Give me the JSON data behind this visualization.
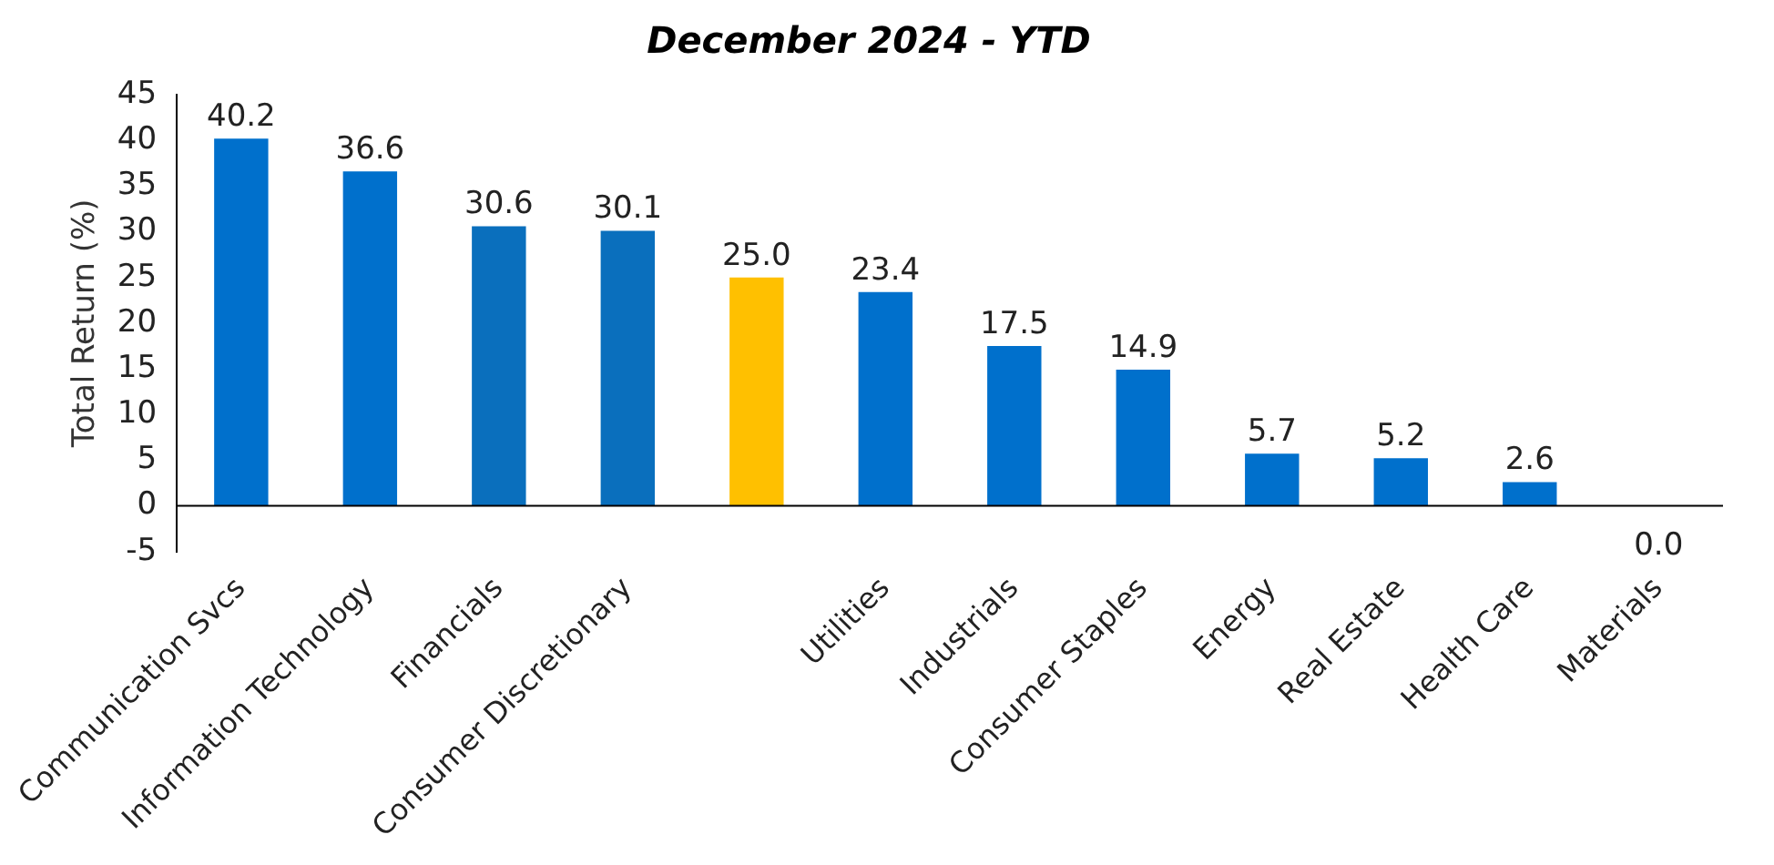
{
  "chart_data": {
    "type": "bar",
    "title": "December 2024 - YTD",
    "ylabel": "Total Return (%)",
    "categories": [
      "Communication Svcs",
      "Information Technology",
      "Financials",
      "Consumer Discretionary",
      null,
      "Utilities",
      "Industrials",
      "Consumer Staples",
      "Energy",
      "Real Estate",
      "Health Care",
      "Materials"
    ],
    "values": [
      40.2,
      36.6,
      30.6,
      30.1,
      25.0,
      23.4,
      17.5,
      14.9,
      5.7,
      5.2,
      2.6,
      0.0
    ],
    "colors": [
      "#0070cc",
      "#0070cc",
      "#0a6fbd",
      "#0a6fbd",
      "#ffc000",
      "#0070cc",
      "#0070cc",
      "#0070cc",
      "#0070cc",
      "#0070cc",
      "#0070cc",
      "#0070cc"
    ],
    "value_labels": [
      "40.2",
      "36.6",
      "30.6",
      "30.1",
      "25.0",
      "23.4",
      "17.5",
      "14.9",
      "5.7",
      "5.2",
      "2.6",
      "0.0"
    ],
    "ylim": [
      -5,
      45
    ],
    "yticks": [
      -5,
      0,
      5,
      10,
      15,
      20,
      25,
      30,
      35,
      40,
      45
    ],
    "grid": false,
    "legend": false
  }
}
